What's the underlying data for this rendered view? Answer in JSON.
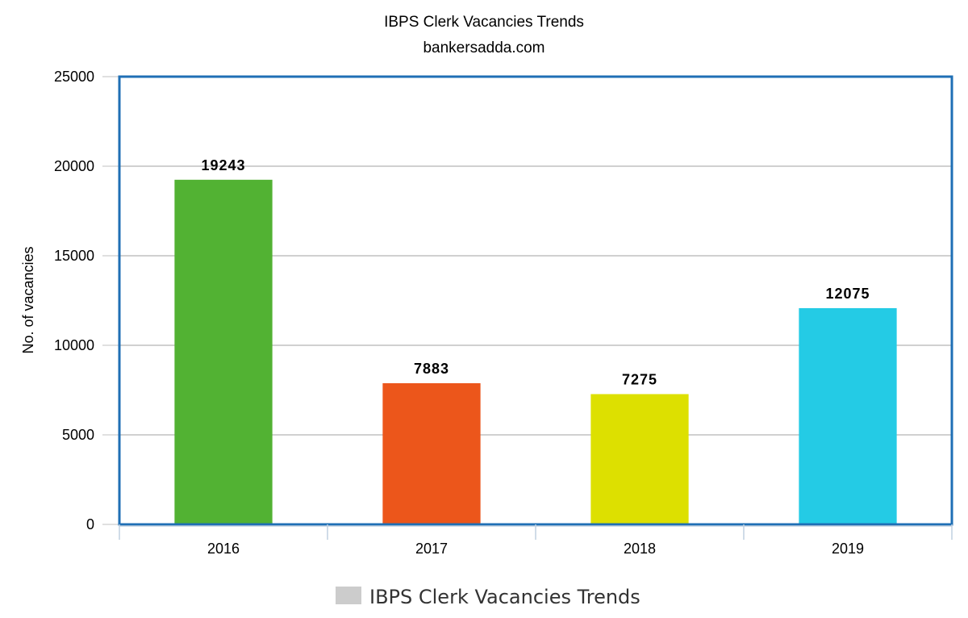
{
  "chart_data": {
    "type": "bar",
    "title": "IBPS Clerk Vacancies Trends",
    "subtitle": "bankersadda.com",
    "xlabel": "",
    "ylabel": "No. of vacancies",
    "categories": [
      "2016",
      "2017",
      "2018",
      "2019"
    ],
    "values": [
      19243,
      7883,
      7275,
      12075
    ],
    "data_labels": [
      "19243",
      "7883",
      "7275",
      "12075"
    ],
    "bar_colors": [
      "#52b233",
      "#ec561b",
      "#dde000",
      "#24cbe5"
    ],
    "ylim": [
      0,
      25000
    ],
    "yticks": [
      0,
      5000,
      10000,
      15000,
      20000,
      25000
    ],
    "ytick_labels": [
      "0",
      "5000",
      "10000",
      "15000",
      "20000",
      "25000"
    ],
    "grid": true,
    "frame_color": "#1f6fb5",
    "legend": {
      "position": "bottom-center",
      "entries": [
        {
          "label": "IBPS Clerk Vacancies Trends",
          "color": "#cccccc"
        }
      ]
    }
  }
}
